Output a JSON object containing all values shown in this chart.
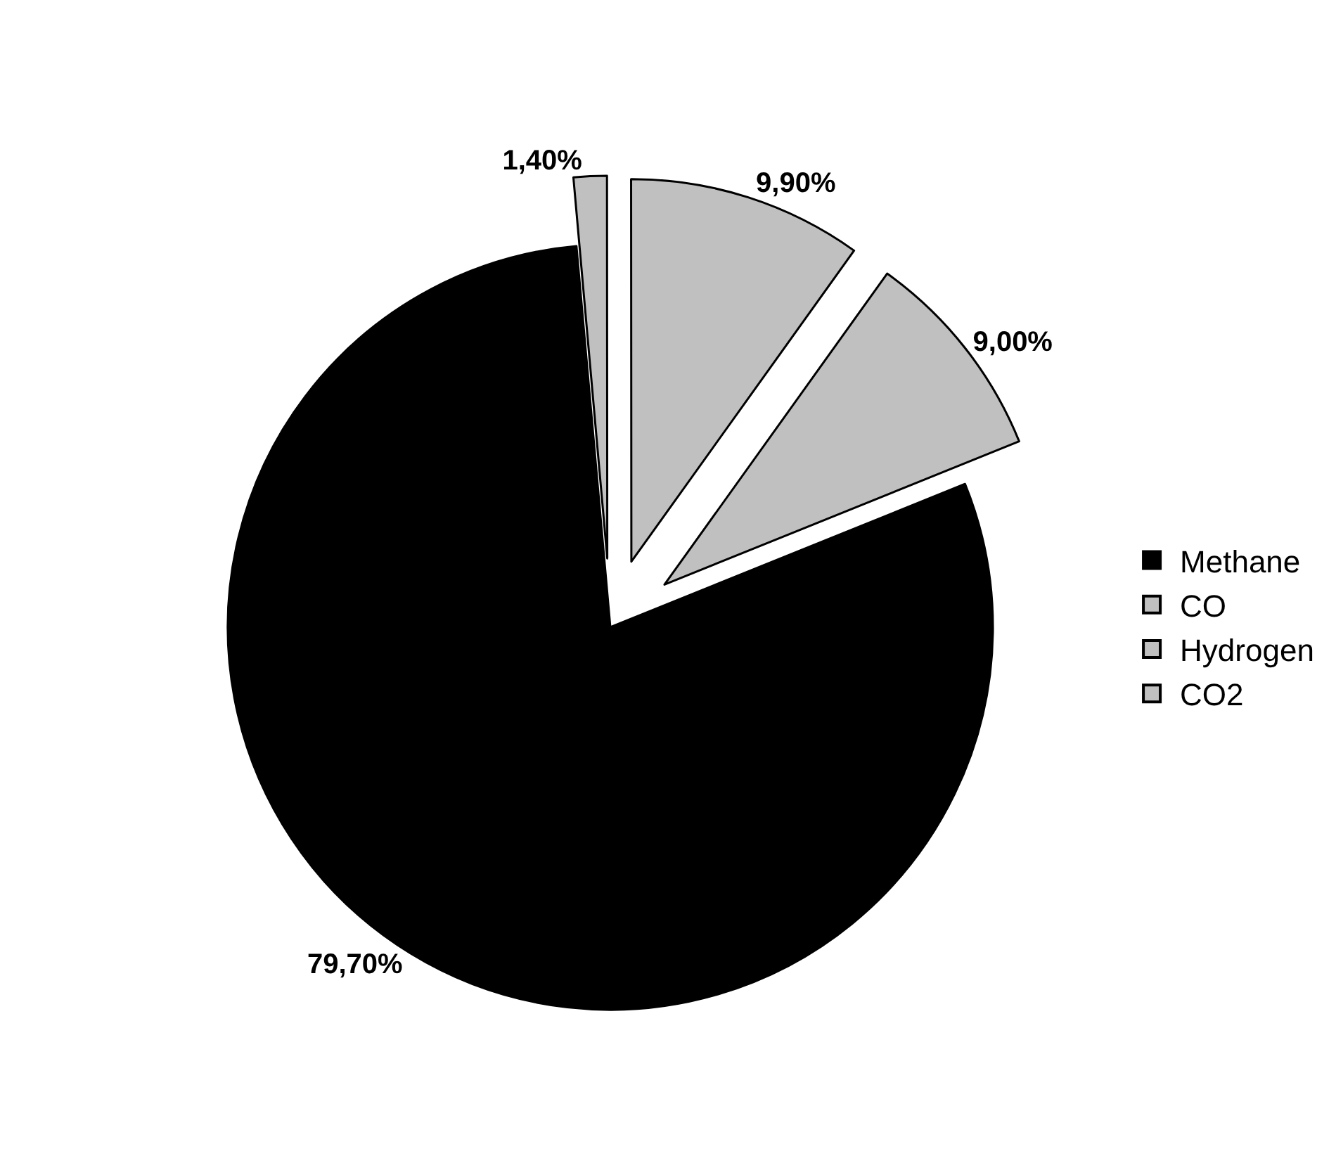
{
  "chart_data": {
    "type": "pie",
    "categories": [
      "Methane",
      "CO",
      "Hydrogen",
      "CO2"
    ],
    "values": [
      79.7,
      1.4,
      9.9,
      9.0
    ],
    "colors": [
      "#000000",
      "#c0c0c0",
      "#c0c0c0",
      "#c0c0c0"
    ],
    "value_labels": [
      "79,70%",
      "1,40%",
      "9,90%",
      "9,00%"
    ],
    "legend": "right"
  }
}
